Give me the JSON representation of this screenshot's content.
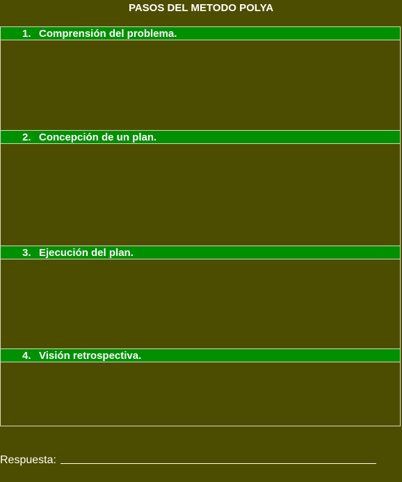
{
  "title": "PASOS DEL METODO POLYA",
  "steps": [
    {
      "number": "1.",
      "label": "Comprensión del problema."
    },
    {
      "number": "2.",
      "label": "Concepción de un plan."
    },
    {
      "number": "3.",
      "label": "Ejecución del plan."
    },
    {
      "number": "4.",
      "label": "Visión retrospectiva."
    }
  ],
  "answer": {
    "label": "Respuesta:",
    "value": ""
  },
  "colors": {
    "background": "#4d4d00",
    "header": "#009000",
    "text": "#ffffff"
  }
}
